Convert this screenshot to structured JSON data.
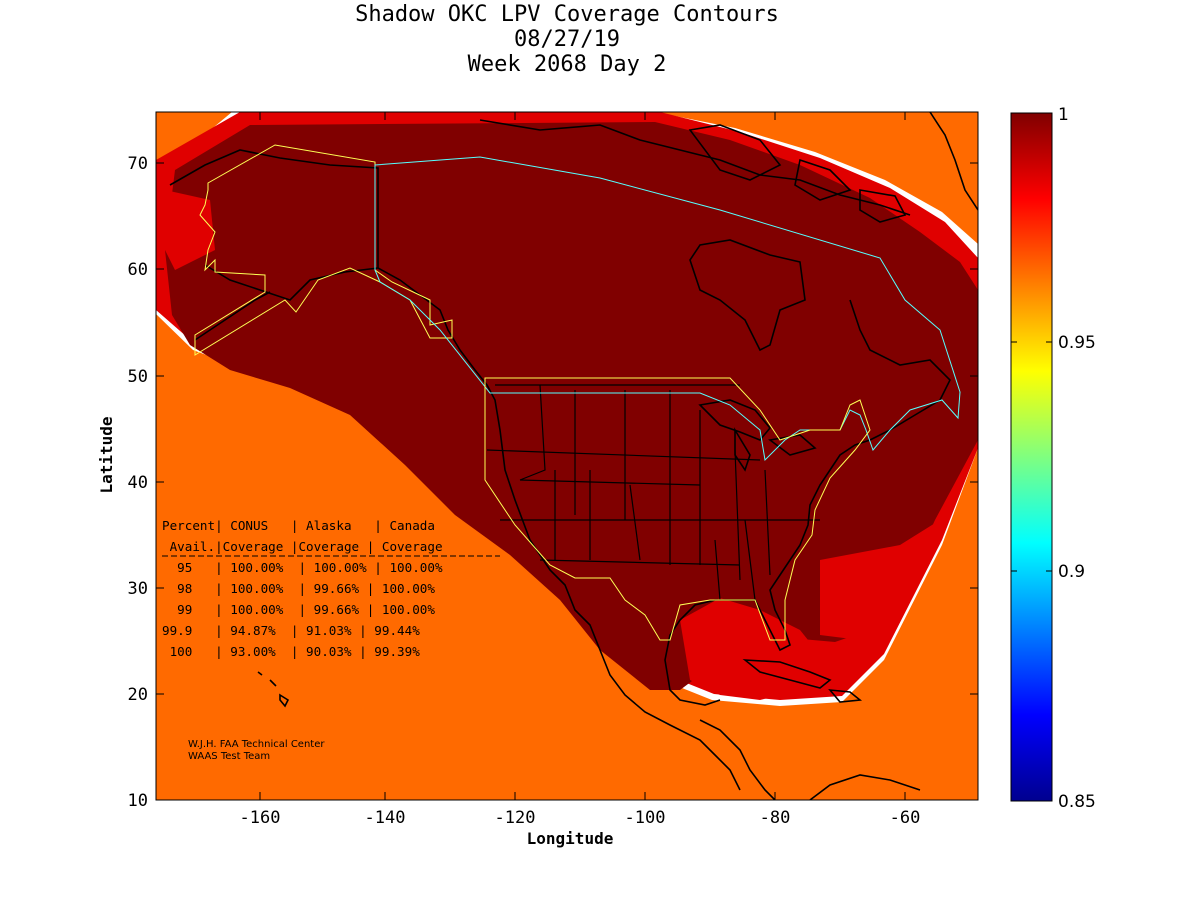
{
  "title": {
    "line1": "Shadow OKC LPV Coverage Contours",
    "line2": "08/27/19",
    "line3": "Week 2068 Day 2"
  },
  "axes": {
    "xlabel": "Longitude",
    "ylabel": "Latitude",
    "x_ticks": [
      "-160",
      "-140",
      "-120",
      "-100",
      "-80",
      "-60"
    ],
    "y_ticks": [
      "70",
      "60",
      "50",
      "40",
      "30",
      "20",
      "10"
    ],
    "xlim": [
      -175,
      -50
    ],
    "ylim": [
      10,
      75
    ]
  },
  "colorbar": {
    "ticks": [
      "1",
      "0.95",
      "0.9",
      "0.85"
    ],
    "range": [
      0.85,
      1
    ],
    "colormap": "jet"
  },
  "coverage_table": {
    "header1": "Percent| CONUS   | Alaska   | Canada",
    "header2": " Avail.|Coverage |Coverage | Coverage",
    "rows": [
      "  95   | 100.00%  | 100.00% | 100.00%",
      "  98   | 100.00%  | 99.66% | 100.00%",
      "  99   | 100.00%  | 99.66% | 100.00%",
      "99.9   | 94.87%  | 91.03% | 99.44%",
      " 100   | 93.00%  | 90.03% | 99.39%"
    ]
  },
  "credits": {
    "line1": "W.J.H. FAA Technical Center",
    "line2": "WAAS Test Team"
  },
  "colors": {
    "dark_red": "#800000",
    "red": "#e00000",
    "orange": "#ff6a00",
    "yellow": "#ffee00",
    "cyan": "#00d8ff",
    "blue": "#0030ff",
    "navy": "#00008f",
    "region_outline_yellow": "#ffff55",
    "region_outline_cyan": "#55ffff"
  }
}
